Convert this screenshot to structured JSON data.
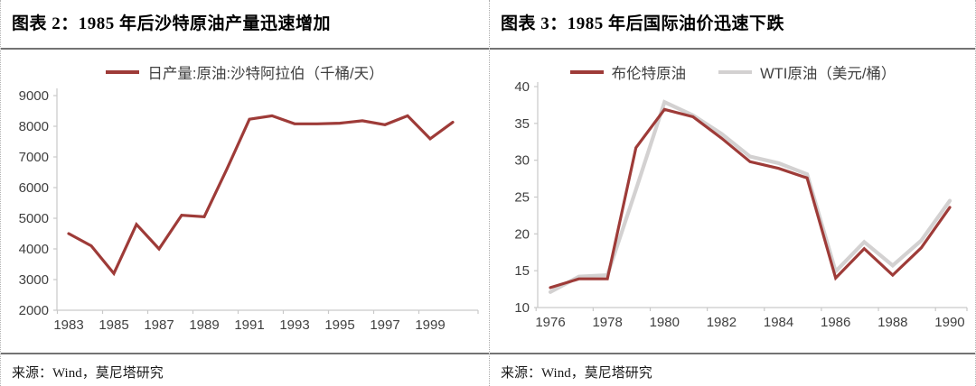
{
  "panels": [
    {
      "title": "图表 2：1985 年后沙特原油产量迅速增加",
      "source": "来源：Wind，莫尼塔研究"
    },
    {
      "title": "图表 3：1985 年后国际油价迅速下跌",
      "source": "来源：Wind，莫尼塔研究"
    }
  ],
  "colors": {
    "brand_red": "#9E3B38",
    "gray_line": "#D3D1D1",
    "axis": "#C9C9C9",
    "tick_text": "#404040",
    "rule": "#737373"
  },
  "chart_data": [
    {
      "type": "line",
      "title": "图表 2：1985 年后沙特原油产量迅速增加",
      "xlabel": "",
      "ylabel": "",
      "x": [
        1983,
        1984,
        1985,
        1986,
        1987,
        1988,
        1989,
        1990,
        1991,
        1992,
        1993,
        1994,
        1995,
        1996,
        1997,
        1998,
        1999,
        2000
      ],
      "xticks": [
        1983,
        1985,
        1987,
        1989,
        1991,
        1993,
        1995,
        1997,
        1999
      ],
      "ylim": [
        2000,
        9000
      ],
      "ytick_step": 1000,
      "grid": false,
      "legend_position": "top-center",
      "series": [
        {
          "name": "日产量:原油:沙特阿拉伯（千桶/天）",
          "color": "#9E3B38",
          "stroke_width": 3.2,
          "values": [
            4500,
            4100,
            3200,
            4800,
            4000,
            5100,
            5050,
            6600,
            8230,
            8340,
            8080,
            8080,
            8100,
            8180,
            8050,
            8340,
            7590,
            8130
          ]
        }
      ]
    },
    {
      "type": "line",
      "title": "图表 3：1985 年后国际油价迅速下跌",
      "xlabel": "",
      "ylabel": "",
      "x": [
        1976,
        1977,
        1978,
        1979,
        1980,
        1981,
        1982,
        1983,
        1984,
        1985,
        1986,
        1987,
        1988,
        1989,
        1990
      ],
      "xticks": [
        1976,
        1978,
        1980,
        1982,
        1984,
        1986,
        1988,
        1990
      ],
      "ylim": [
        10,
        40
      ],
      "ytick_step": 5,
      "grid": false,
      "legend_position": "top-center",
      "series": [
        {
          "name": "布伦特原油",
          "color": "#9E3B38",
          "stroke_width": 3.2,
          "values": [
            12.7,
            13.9,
            13.9,
            31.7,
            36.9,
            35.9,
            33.0,
            29.8,
            28.9,
            27.6,
            14.0,
            18.0,
            14.4,
            18.1,
            23.6
          ]
        },
        {
          "name": "WTI原油（美元/桶）",
          "color": "#D3D1D1",
          "stroke_width": 4.2,
          "values": [
            12.1,
            14.2,
            14.4,
            26.0,
            37.9,
            36.1,
            33.6,
            30.5,
            29.6,
            28.1,
            14.9,
            18.9,
            15.7,
            19.1,
            24.5
          ]
        }
      ]
    }
  ]
}
